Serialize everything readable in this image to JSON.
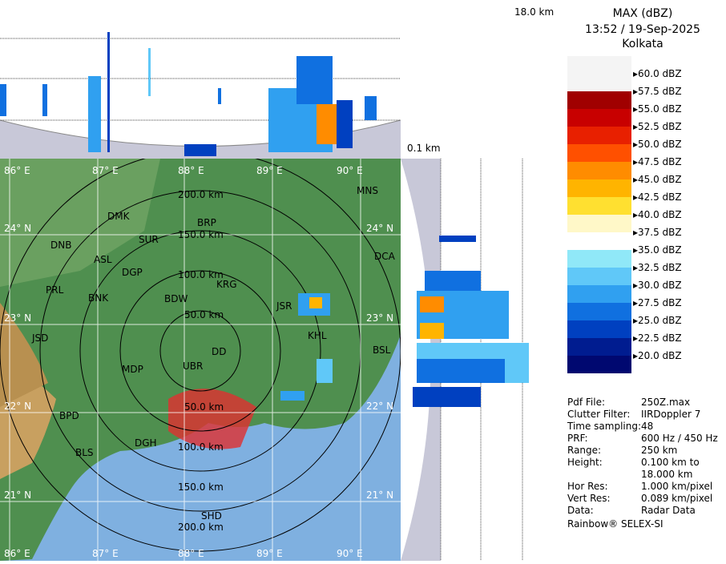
{
  "header": {
    "product": "MAX (dBZ)",
    "datetime": "13:52 / 19-Sep-2025",
    "station": "Kolkata"
  },
  "top_panel": {
    "height_top_label": "18.0 km",
    "height_bottom_label": "0.1 km"
  },
  "legend": {
    "labels": [
      "60.0 dBZ",
      "57.5 dBZ",
      "55.0 dBZ",
      "52.5 dBZ",
      "50.0 dBZ",
      "47.5 dBZ",
      "45.0 dBZ",
      "42.5 dBZ",
      "40.0 dBZ",
      "37.5 dBZ",
      "35.0 dBZ",
      "32.5 dBZ",
      "30.0 dBZ",
      "27.5 dBZ",
      "25.0 dBZ",
      "22.5 dBZ",
      "20.0 dBZ"
    ],
    "colors": [
      "#f4f4f4",
      "#f4f4f4",
      "#a00000",
      "#c80000",
      "#e82000",
      "#ff5000",
      "#ff8c00",
      "#ffb400",
      "#ffe030",
      "#fff8c8",
      "#ffffff",
      "#90e8f8",
      "#60c8f8",
      "#30a0f0",
      "#1070e0",
      "#0040c0",
      "#001c90",
      "#000870"
    ]
  },
  "info": {
    "rows": [
      {
        "k": "Pdf File:",
        "v": "250Z.max"
      },
      {
        "k": "Clutter Filter:",
        "v": "IIRDoppler 7"
      },
      {
        "k": "Time sampling:",
        "v": "48"
      },
      {
        "k": "PRF:",
        "v": "600 Hz / 450 Hz"
      },
      {
        "k": "Range:",
        "v": "250 km"
      },
      {
        "k": "Height:",
        "v": "0.100 km to"
      },
      {
        "k": "",
        "v": "18.000 km"
      },
      {
        "k": "Hor Res:",
        "v": "1.000 km/pixel"
      },
      {
        "k": "Vert Res:",
        "v": "0.089 km/pixel"
      },
      {
        "k": "Data:",
        "v": "Radar Data"
      }
    ],
    "footer": "Rainbow® SELEX-SI"
  },
  "map": {
    "lon_labels": [
      "86° E",
      "87° E",
      "88° E",
      "89° E",
      "90° E"
    ],
    "lat_labels": [
      "24° N",
      "23° N",
      "22° N",
      "21° N"
    ],
    "range_rings": [
      "50.0 km",
      "100.0 km",
      "150.0 km",
      "200.0 km"
    ],
    "cities": [
      "DMK",
      "BRP",
      "SUR",
      "DNB",
      "ASL",
      "DGP",
      "MNS",
      "DCA",
      "KRG",
      "BNK",
      "BDW",
      "JSR",
      "PRL",
      "KHL",
      "DD",
      "JSD",
      "BSL",
      "MDP",
      "UBR",
      "BPD",
      "DGH",
      "BLS",
      "SHD"
    ]
  }
}
